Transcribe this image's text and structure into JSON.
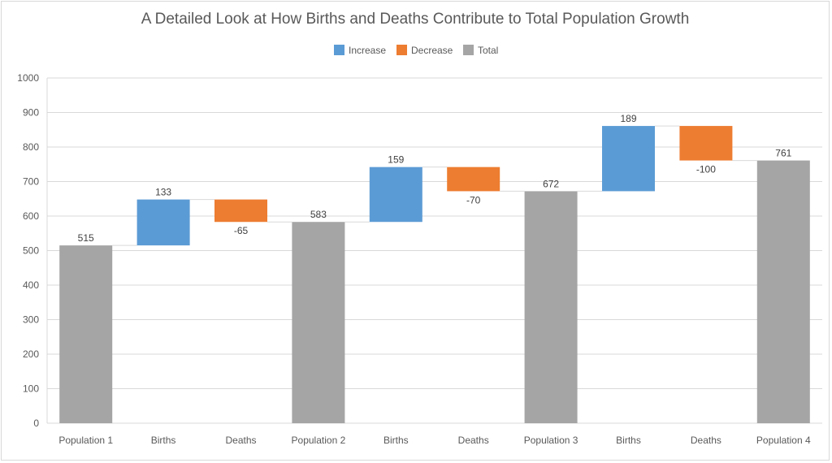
{
  "chart_data": {
    "type": "waterfall",
    "title": "A Detailed Look at How Births and Deaths Contribute to Total Population Growth",
    "categories": [
      "Population 1",
      "Births",
      "Deaths",
      "Population 2",
      "Births",
      "Deaths",
      "Population 3",
      "Births",
      "Deaths",
      "Population 4"
    ],
    "values": [
      515,
      133,
      -65,
      583,
      159,
      -70,
      672,
      189,
      -100,
      761
    ],
    "kinds": [
      "total",
      "increase",
      "decrease",
      "total",
      "increase",
      "decrease",
      "total",
      "increase",
      "decrease",
      "total"
    ],
    "legend": [
      {
        "key": "increase",
        "label": "Increase",
        "color": "#5b9bd5"
      },
      {
        "key": "decrease",
        "label": "Decrease",
        "color": "#ed7d31"
      },
      {
        "key": "total",
        "label": "Total",
        "color": "#a5a5a5"
      }
    ],
    "legend_position": "top",
    "ylim": [
      0,
      1000
    ],
    "yticks": [
      0,
      100,
      200,
      300,
      400,
      500,
      600,
      700,
      800,
      900,
      1000
    ],
    "grid": true,
    "xlabel": "",
    "ylabel": ""
  }
}
